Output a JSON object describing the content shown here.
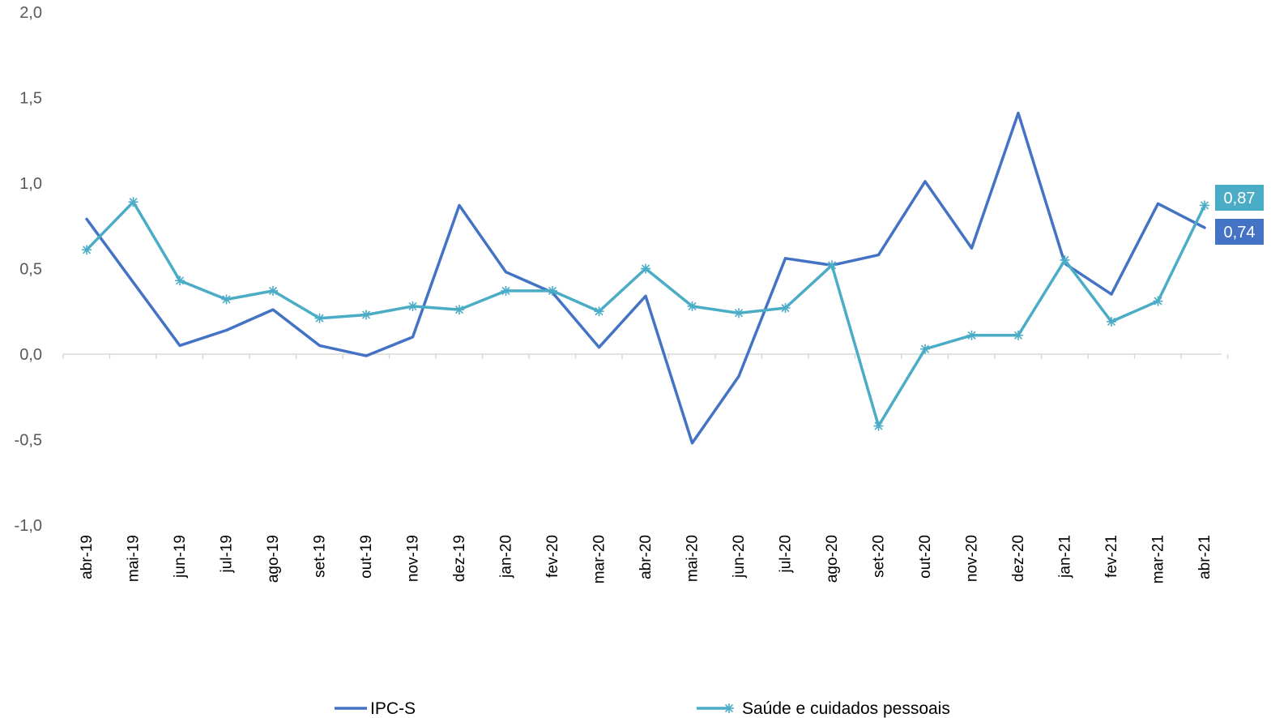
{
  "chart_data": {
    "type": "line",
    "title": "",
    "xlabel": "",
    "ylabel": "",
    "ylim": [
      -1.0,
      2.0
    ],
    "yticks": [
      "2,0",
      "1,5",
      "1,0",
      "0,5",
      "0,0",
      "-0,5",
      "-1,0"
    ],
    "ytick_values": [
      2.0,
      1.5,
      1.0,
      0.5,
      0.0,
      -0.5,
      -1.0
    ],
    "categories": [
      "abr-19",
      "mai-19",
      "jun-19",
      "jul-19",
      "ago-19",
      "set-19",
      "out-19",
      "nov-19",
      "dez-19",
      "jan-20",
      "fev-20",
      "mar-20",
      "abr-20",
      "mai-20",
      "jun-20",
      "jul-20",
      "ago-20",
      "set-20",
      "out-20",
      "nov-20",
      "dez-20",
      "jan-21",
      "fev-21",
      "mar-21",
      "abr-21"
    ],
    "grid": false,
    "legend": "bottom",
    "series": [
      {
        "name": "IPC-S",
        "color": "#4472C4",
        "marker": "none",
        "values": [
          0.79,
          0.42,
          0.05,
          0.14,
          0.26,
          0.05,
          -0.01,
          0.1,
          0.87,
          0.48,
          0.36,
          0.04,
          0.34,
          -0.52,
          -0.13,
          0.56,
          0.52,
          0.58,
          1.01,
          0.62,
          1.41,
          0.53,
          0.35,
          0.88,
          0.74
        ]
      },
      {
        "name": "Saúde e cuidados pessoais",
        "color": "#4BACC6",
        "marker": "asterisk",
        "values": [
          0.61,
          0.89,
          0.43,
          0.32,
          0.37,
          0.21,
          0.23,
          0.28,
          0.26,
          0.37,
          0.37,
          0.25,
          0.5,
          0.28,
          0.24,
          0.27,
          0.52,
          -0.42,
          0.03,
          0.11,
          0.11,
          0.55,
          0.19,
          0.31,
          0.87
        ]
      }
    ],
    "end_labels": [
      {
        "series": 1,
        "text": "0,87",
        "color": "#4BACC6"
      },
      {
        "series": 0,
        "text": "0,74",
        "color": "#4472C4"
      }
    ]
  }
}
